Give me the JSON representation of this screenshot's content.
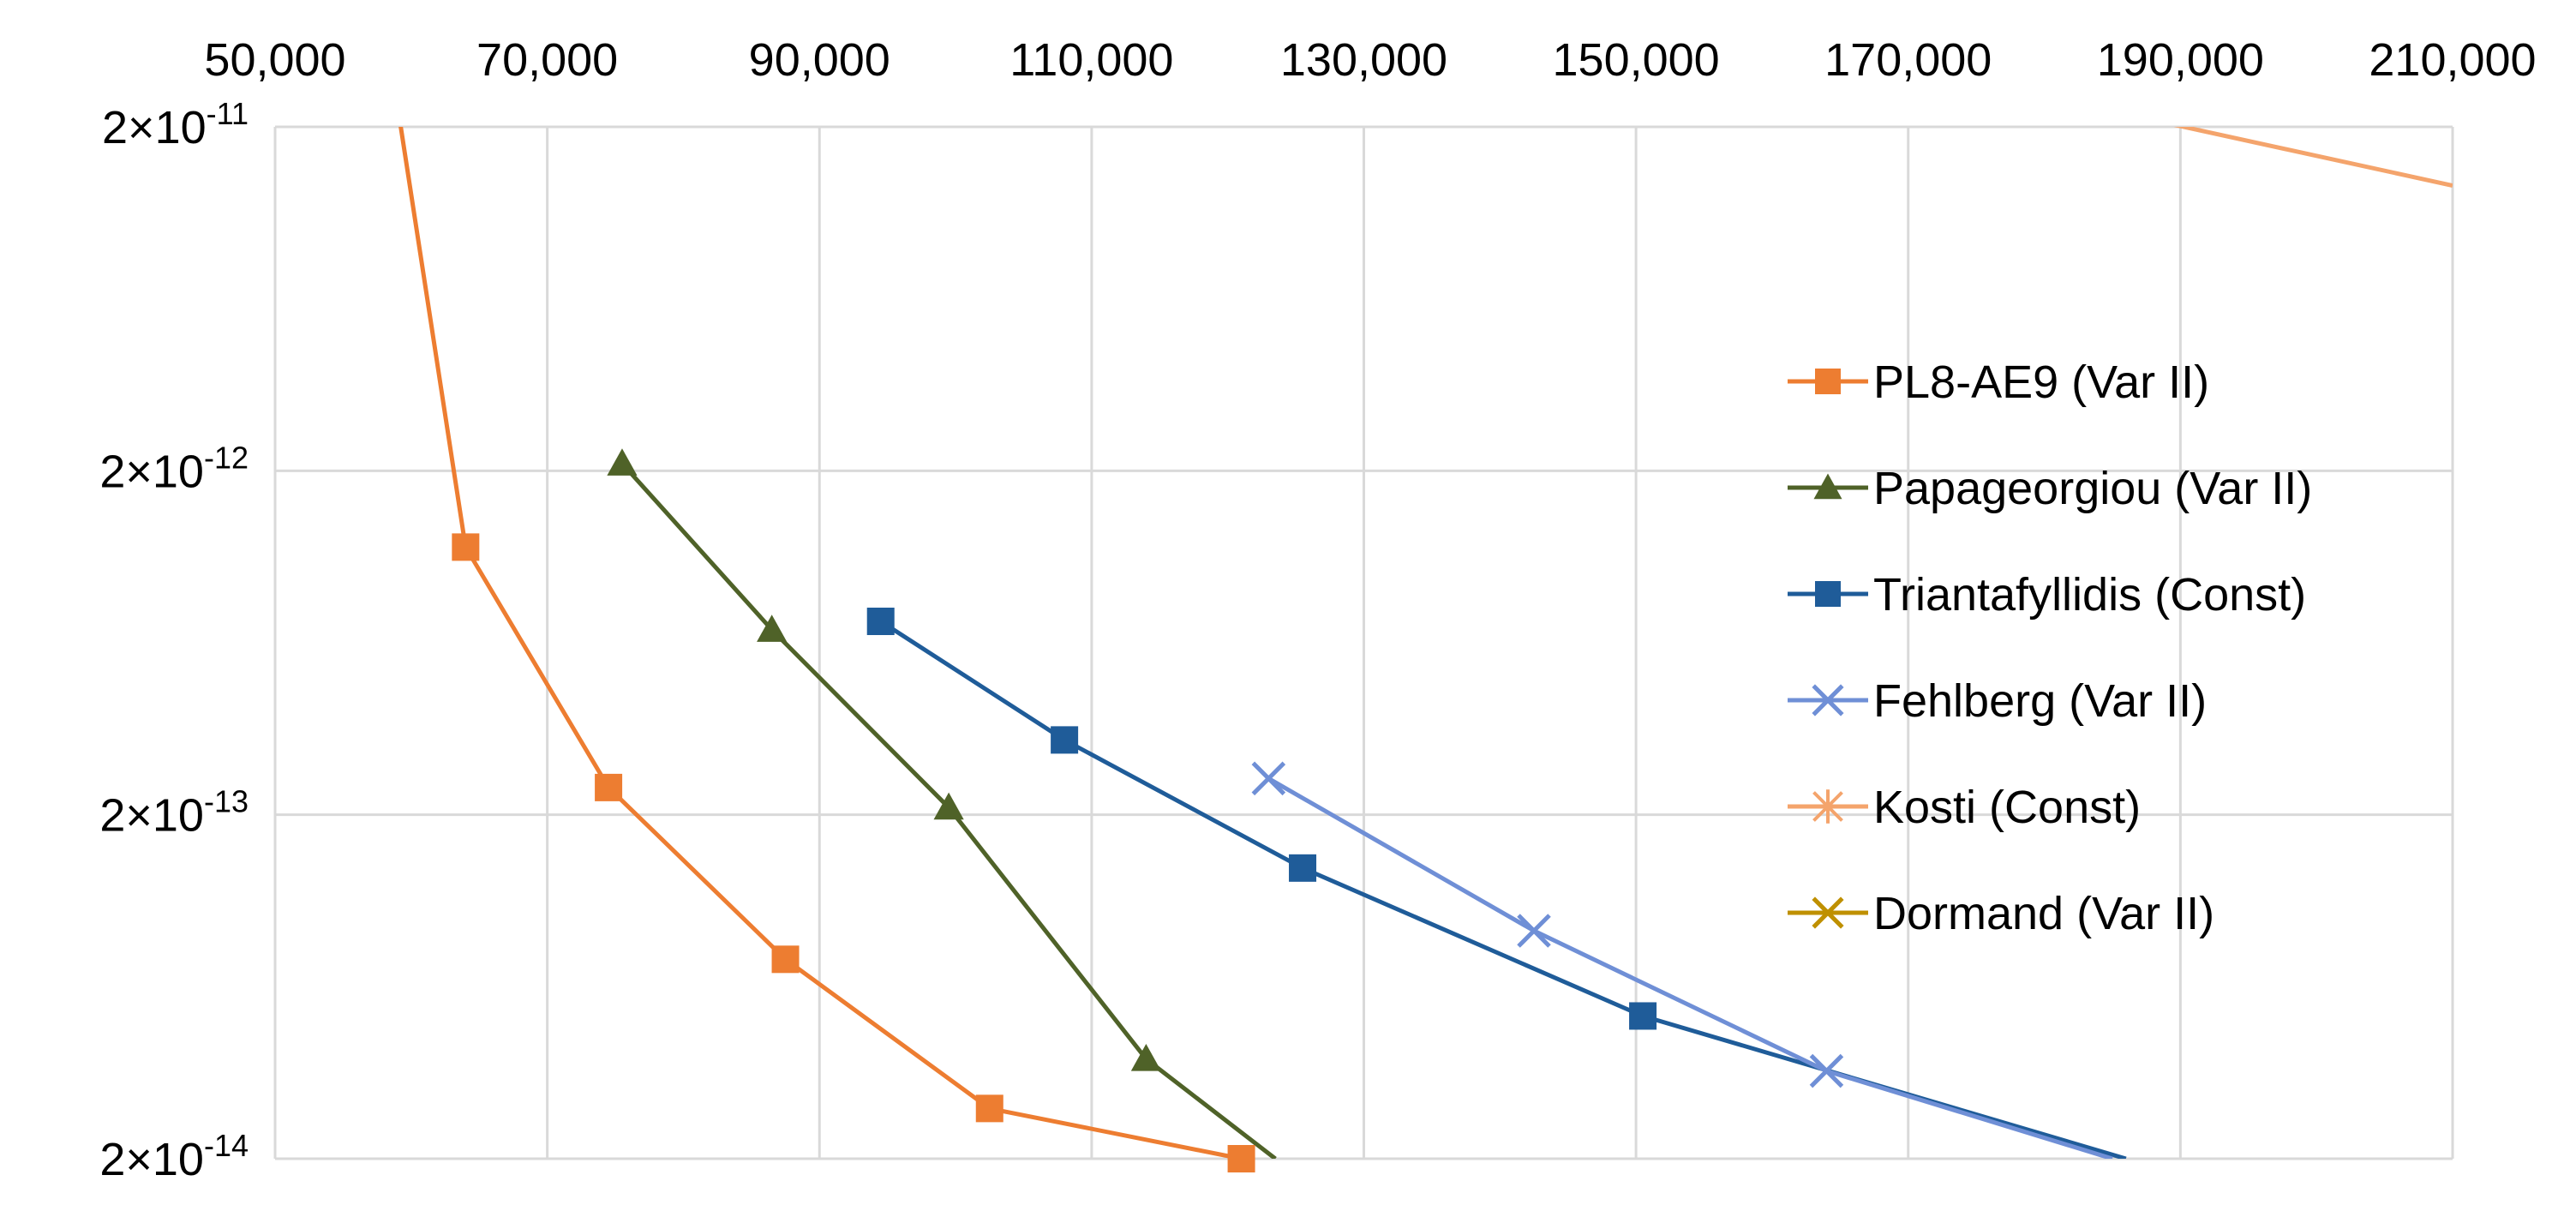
{
  "chart_data": {
    "type": "line",
    "title": "",
    "xlabel": "",
    "ylabel": "",
    "x_axis": {
      "position": "top",
      "min": 50000,
      "max": 210000,
      "ticks": [
        50000,
        70000,
        90000,
        110000,
        130000,
        150000,
        170000,
        190000,
        210000
      ],
      "tick_labels": [
        "50,000",
        "70,000",
        "90,000",
        "110,000",
        "130,000",
        "150,000",
        "170,000",
        "190,000",
        "210,000"
      ]
    },
    "y_axis": {
      "scale": "log",
      "min": 2e-14,
      "max": 2e-11,
      "ticks": [
        2e-11,
        2e-12,
        2e-13,
        2e-14
      ],
      "tick_labels": [
        {
          "mantissa": "2×10",
          "exponent": "-11"
        },
        {
          "mantissa": "2×10",
          "exponent": "-12"
        },
        {
          "mantissa": "2×10",
          "exponent": "-13"
        },
        {
          "mantissa": "2×10",
          "exponent": "-14"
        }
      ]
    },
    "grid": true,
    "legend_position": "right",
    "series": [
      {
        "name": "PL8-AE9 (Var II)",
        "color": "#ED7D31",
        "marker": "square",
        "points": [
          [
            59000,
            2.3e-11
          ],
          [
            64000,
            1.2e-12
          ],
          [
            74500,
            2.4e-13
          ],
          [
            87500,
            7.6e-14
          ],
          [
            102500,
            2.8e-14
          ],
          [
            121000,
            2e-14
          ]
        ]
      },
      {
        "name": "Papageorgiou (Var II)",
        "color": "#4F6228",
        "marker": "triangle",
        "points": [
          [
            75500,
            2.1e-12
          ],
          [
            86500,
            6.9e-13
          ],
          [
            99500,
            2.1e-13
          ],
          [
            114000,
            3.9e-14
          ],
          [
            123500,
            2e-14
          ]
        ]
      },
      {
        "name": "Triantafyllidis (Const)",
        "color": "#1F5C99",
        "marker": "square",
        "points": [
          [
            94500,
            7.3e-13
          ],
          [
            108000,
            3.3e-13
          ],
          [
            125500,
            1.4e-13
          ],
          [
            150500,
            5.2e-14
          ],
          [
            186000,
            2e-14
          ]
        ]
      },
      {
        "name": "Fehlberg (Var II)",
        "color": "#6F8FD6",
        "marker": "x",
        "points": [
          [
            123000,
            2.55e-13
          ],
          [
            142500,
            9.2e-14
          ],
          [
            164000,
            3.6e-14
          ],
          [
            185000,
            2e-14
          ]
        ]
      },
      {
        "name": "Kosti (Const)",
        "color": "#F4A46C",
        "marker": "asterisk",
        "points": [
          [
            189000,
            2.05e-11
          ],
          [
            210000,
            1.35e-11
          ]
        ]
      },
      {
        "name": "Dormand (Var II)",
        "color": "#BF9000",
        "marker": "x",
        "points": []
      }
    ]
  }
}
